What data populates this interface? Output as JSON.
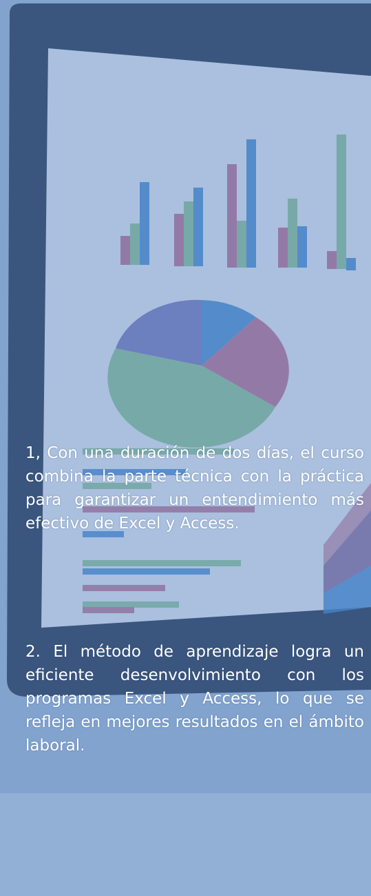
{
  "paragraphs": [
    "1, Con una duración de  dos días, el curso  combina  la parte técnica con la  práctica  para  garantizar  un entendimiento  más  efectivo  de Excel y Access.",
    "2. El método de  aprendizaje logra un   eficiente  desenvolvimiento con los programas Excel y Access, lo que se  refleja  en  mejores resultados en el ámbito laboral."
  ]
}
